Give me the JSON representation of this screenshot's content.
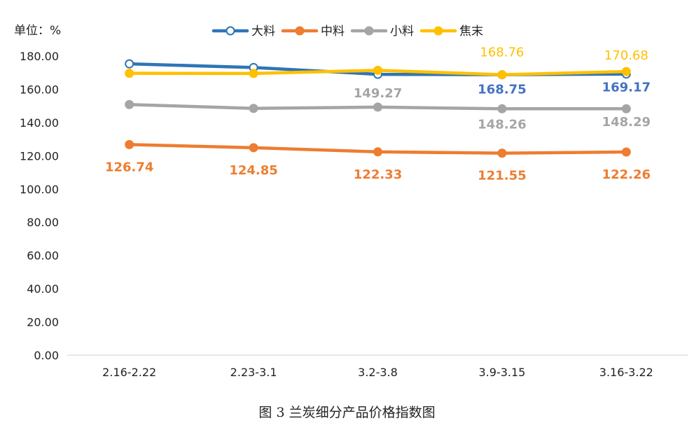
{
  "chart_data": {
    "type": "line",
    "unit_label": "单位：%",
    "caption": "图 3  兰炭细分产品价格指数图",
    "categories": [
      "2.16-2.22",
      "2.23-3.1",
      "3.2-3.8",
      "3.9-3.15",
      "3.16-3.22"
    ],
    "ylim": [
      0,
      180
    ],
    "yticks": [
      "0.00",
      "20.00",
      "40.00",
      "60.00",
      "80.00",
      "100.00",
      "120.00",
      "140.00",
      "160.00",
      "180.00"
    ],
    "grid": false,
    "legend_position": "top",
    "series": [
      {
        "name": "大料",
        "color": "#2e75b6",
        "marker": "open-circle",
        "values": [
          175.3,
          173.1,
          169.0,
          168.75,
          169.17
        ],
        "labels": [
          "",
          "",
          "",
          "168.75",
          "169.17"
        ],
        "label_color": "#4472c4"
      },
      {
        "name": "中料",
        "color": "#ed7d31",
        "marker": "filled-circle",
        "values": [
          126.74,
          124.85,
          122.33,
          121.55,
          122.26
        ],
        "labels": [
          "126.74",
          "124.85",
          "122.33",
          "121.55",
          "122.26"
        ],
        "label_color": "#ed7d31"
      },
      {
        "name": "小料",
        "color": "#a5a5a5",
        "marker": "filled-circle",
        "values": [
          150.8,
          148.5,
          149.27,
          148.26,
          148.29
        ],
        "labels": [
          "",
          "",
          "149.27",
          "148.26",
          "148.29"
        ],
        "label_color": "#a5a5a5"
      },
      {
        "name": "焦末",
        "color": "#ffc000",
        "marker": "filled-circle",
        "values": [
          169.6,
          169.5,
          171.4,
          168.76,
          170.68
        ],
        "labels": [
          "",
          "",
          "",
          "168.76",
          "170.68"
        ],
        "label_color": "#ffc000"
      }
    ]
  }
}
